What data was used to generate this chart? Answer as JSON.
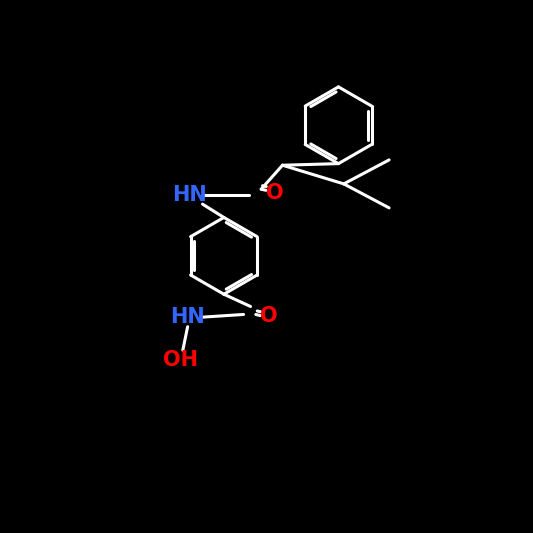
{
  "bg": "#000000",
  "bond": "#ffffff",
  "N_color": "#3366FF",
  "O_color": "#FF0000",
  "OH_color": "#FF0000",
  "lw": 2.2,
  "font_size": 15,
  "font_weight": "bold",
  "xlim": [
    0,
    10
  ],
  "ylim": [
    0,
    10
  ]
}
